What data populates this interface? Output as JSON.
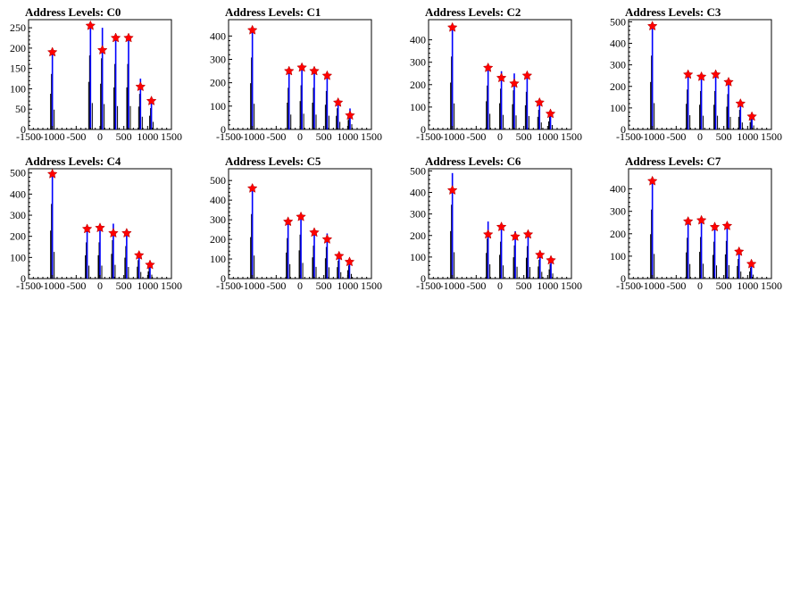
{
  "chart_data": [
    {
      "type": "histogram",
      "title": "Address Levels: C0",
      "xlim": [
        -1500,
        1500
      ],
      "ylim": [
        0,
        270
      ],
      "xticks": [
        -1500,
        -1000,
        -500,
        0,
        500,
        1000,
        1500
      ],
      "yticks": [
        0,
        50,
        100,
        150,
        200,
        250
      ],
      "peaks": [
        {
          "x": -1000,
          "y": 195,
          "marker": 190
        },
        {
          "x": -200,
          "y": 260,
          "marker": 255
        },
        {
          "x": 50,
          "y": 250,
          "marker": 195
        },
        {
          "x": 330,
          "y": 230,
          "marker": 225
        },
        {
          "x": 600,
          "y": 230,
          "marker": 225
        },
        {
          "x": 850,
          "y": 125,
          "marker": 105
        },
        {
          "x": 1080,
          "y": 75,
          "marker": 70
        }
      ]
    },
    {
      "type": "histogram",
      "title": "Address Levels: C1",
      "xlim": [
        -1500,
        1500
      ],
      "ylim": [
        0,
        470
      ],
      "xticks": [
        -1500,
        -1000,
        -500,
        0,
        500,
        1000,
        1500
      ],
      "yticks": [
        0,
        100,
        200,
        300,
        400
      ],
      "peaks": [
        {
          "x": -1000,
          "y": 440,
          "marker": 425
        },
        {
          "x": -230,
          "y": 255,
          "marker": 250
        },
        {
          "x": 40,
          "y": 270,
          "marker": 265
        },
        {
          "x": 300,
          "y": 255,
          "marker": 250
        },
        {
          "x": 570,
          "y": 235,
          "marker": 230
        },
        {
          "x": 800,
          "y": 130,
          "marker": 115
        },
        {
          "x": 1050,
          "y": 90,
          "marker": 60
        }
      ]
    },
    {
      "type": "histogram",
      "title": "Address Levels: C2",
      "xlim": [
        -1500,
        1500
      ],
      "ylim": [
        0,
        490
      ],
      "xticks": [
        -1500,
        -1000,
        -500,
        0,
        500,
        1000,
        1500
      ],
      "yticks": [
        0,
        100,
        200,
        300,
        400
      ],
      "peaks": [
        {
          "x": -1000,
          "y": 465,
          "marker": 455
        },
        {
          "x": -250,
          "y": 280,
          "marker": 275
        },
        {
          "x": 30,
          "y": 260,
          "marker": 230
        },
        {
          "x": 300,
          "y": 250,
          "marker": 205
        },
        {
          "x": 570,
          "y": 240,
          "marker": 240
        },
        {
          "x": 830,
          "y": 125,
          "marker": 120
        },
        {
          "x": 1060,
          "y": 80,
          "marker": 70
        }
      ]
    },
    {
      "type": "histogram",
      "title": "Address Levels: C3",
      "xlim": [
        -1500,
        1500
      ],
      "ylim": [
        0,
        510
      ],
      "xticks": [
        -1500,
        -1000,
        -500,
        0,
        500,
        1000,
        1500
      ],
      "yticks": [
        0,
        100,
        200,
        300,
        400,
        500
      ],
      "peaks": [
        {
          "x": -1000,
          "y": 490,
          "marker": 480
        },
        {
          "x": -250,
          "y": 265,
          "marker": 255
        },
        {
          "x": 30,
          "y": 255,
          "marker": 245
        },
        {
          "x": 330,
          "y": 255,
          "marker": 255
        },
        {
          "x": 600,
          "y": 235,
          "marker": 220
        },
        {
          "x": 850,
          "y": 130,
          "marker": 120
        },
        {
          "x": 1090,
          "y": 75,
          "marker": 60
        }
      ]
    },
    {
      "type": "histogram",
      "title": "Address Levels: C4",
      "xlim": [
        -1500,
        1500
      ],
      "ylim": [
        0,
        520
      ],
      "xticks": [
        -1500,
        -1000,
        -500,
        0,
        500,
        1000,
        1500
      ],
      "yticks": [
        0,
        100,
        200,
        300,
        400,
        500
      ],
      "peaks": [
        {
          "x": -1000,
          "y": 505,
          "marker": 495
        },
        {
          "x": -270,
          "y": 245,
          "marker": 235
        },
        {
          "x": 0,
          "y": 245,
          "marker": 240
        },
        {
          "x": 280,
          "y": 260,
          "marker": 215
        },
        {
          "x": 560,
          "y": 220,
          "marker": 215
        },
        {
          "x": 820,
          "y": 125,
          "marker": 110
        },
        {
          "x": 1050,
          "y": 75,
          "marker": 65
        }
      ]
    },
    {
      "type": "histogram",
      "title": "Address Levels: C5",
      "xlim": [
        -1500,
        1500
      ],
      "ylim": [
        0,
        560
      ],
      "xticks": [
        -1500,
        -1000,
        -500,
        0,
        500,
        1000,
        1500
      ],
      "yticks": [
        0,
        100,
        200,
        300,
        400,
        500
      ],
      "peaks": [
        {
          "x": -1000,
          "y": 470,
          "marker": 460
        },
        {
          "x": -250,
          "y": 295,
          "marker": 290
        },
        {
          "x": 20,
          "y": 320,
          "marker": 315
        },
        {
          "x": 300,
          "y": 240,
          "marker": 235
        },
        {
          "x": 570,
          "y": 230,
          "marker": 200
        },
        {
          "x": 820,
          "y": 130,
          "marker": 115
        },
        {
          "x": 1040,
          "y": 95,
          "marker": 85
        }
      ]
    },
    {
      "type": "histogram",
      "title": "Address Levels: C6",
      "xlim": [
        -1500,
        1500
      ],
      "ylim": [
        0,
        510
      ],
      "xticks": [
        -1500,
        -1000,
        -500,
        0,
        500,
        1000,
        1500
      ],
      "yticks": [
        0,
        100,
        200,
        300,
        400,
        500
      ],
      "peaks": [
        {
          "x": -1000,
          "y": 490,
          "marker": 410
        },
        {
          "x": -250,
          "y": 265,
          "marker": 205
        },
        {
          "x": 30,
          "y": 245,
          "marker": 240
        },
        {
          "x": 320,
          "y": 220,
          "marker": 195
        },
        {
          "x": 590,
          "y": 215,
          "marker": 205
        },
        {
          "x": 840,
          "y": 125,
          "marker": 110
        },
        {
          "x": 1070,
          "y": 95,
          "marker": 85
        }
      ]
    },
    {
      "type": "histogram",
      "title": "Address Levels: C7",
      "xlim": [
        -1500,
        1500
      ],
      "ylim": [
        0,
        490
      ],
      "xticks": [
        -1500,
        -1000,
        -500,
        0,
        500,
        1000,
        1500
      ],
      "yticks": [
        0,
        100,
        200,
        300,
        400
      ],
      "peaks": [
        {
          "x": -1000,
          "y": 440,
          "marker": 435
        },
        {
          "x": -250,
          "y": 260,
          "marker": 255
        },
        {
          "x": 30,
          "y": 265,
          "marker": 260
        },
        {
          "x": 310,
          "y": 235,
          "marker": 230
        },
        {
          "x": 570,
          "y": 240,
          "marker": 235
        },
        {
          "x": 820,
          "y": 125,
          "marker": 120
        },
        {
          "x": 1080,
          "y": 70,
          "marker": 65
        }
      ]
    }
  ],
  "colors": {
    "bar": "#0000ff",
    "marker": "#ff0000",
    "frame": "#000000"
  }
}
